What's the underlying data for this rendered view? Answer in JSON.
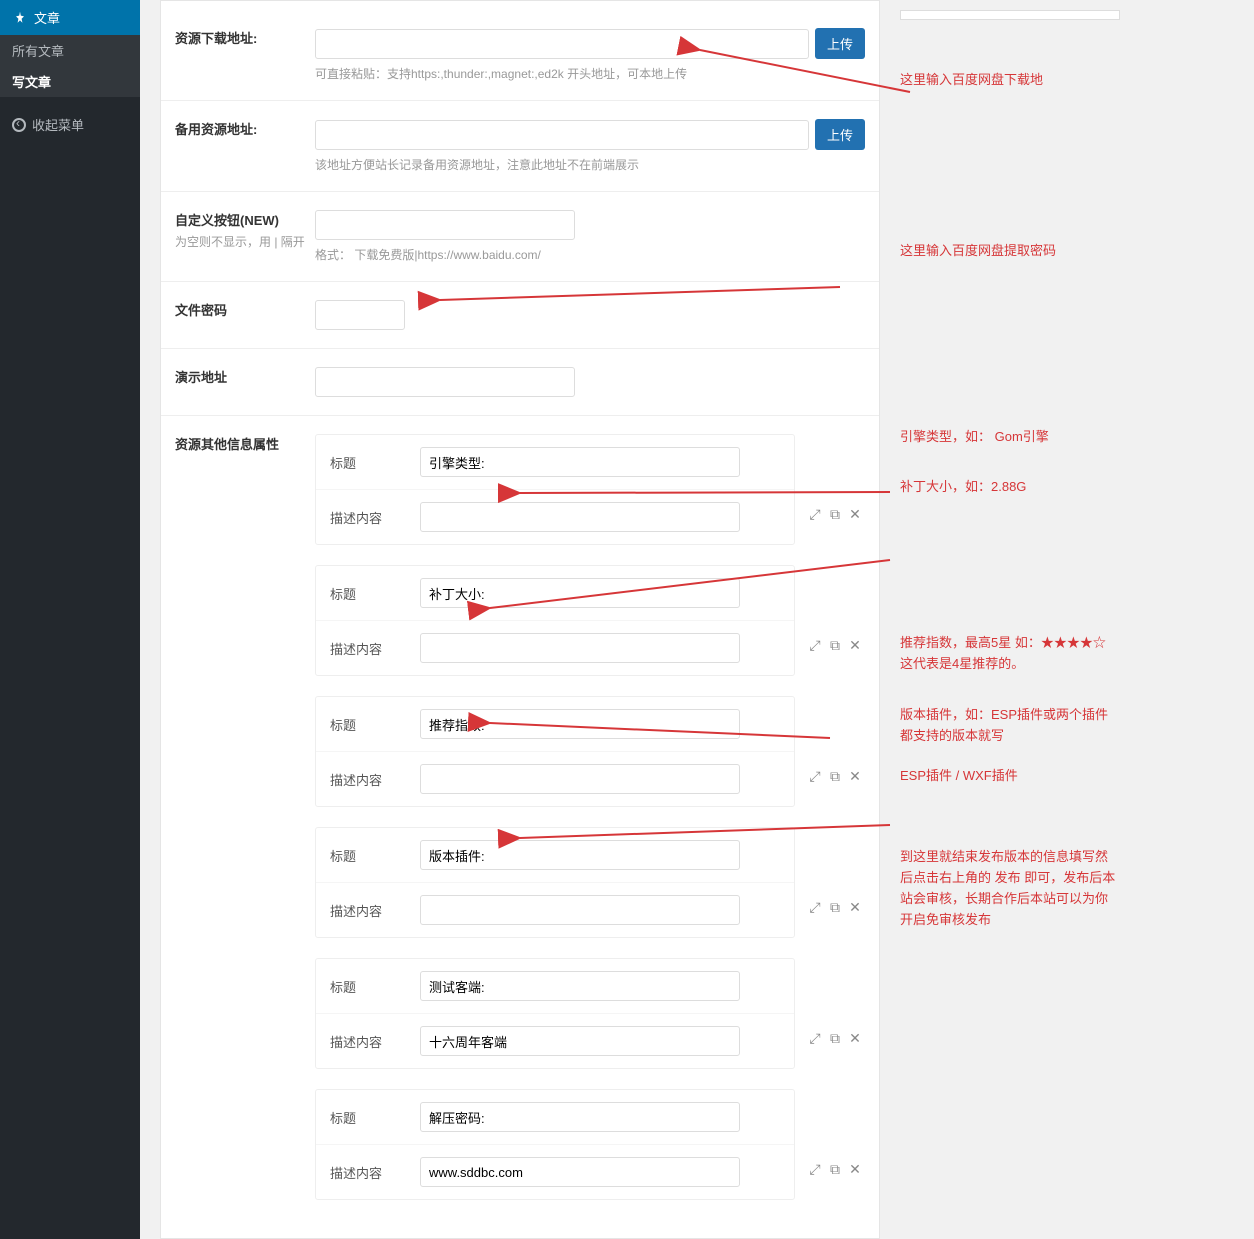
{
  "sidebar": {
    "articles_label": "文章",
    "all_articles": "所有文章",
    "write_article": "写文章",
    "collapse": "收起菜单"
  },
  "fields": {
    "download": {
      "label": "资源下载地址:",
      "upload": "上传",
      "help": "可直接粘贴：支持https:,thunder:,magnet:,ed2k 开头地址，可本地上传"
    },
    "backup": {
      "label": "备用资源地址:",
      "upload": "上传",
      "help": "该地址方便站长记录备用资源地址，注意此地址不在前端展示"
    },
    "custom_btn": {
      "label": "自定义按钮(NEW)",
      "sub": "为空则不显示，用 | 隔开",
      "help": "格式： 下载免费版|https://www.baidu.com/"
    },
    "password": {
      "label": "文件密码"
    },
    "demo": {
      "label": "演示地址"
    },
    "attrs": {
      "label": "资源其他信息属性"
    }
  },
  "attr_labels": {
    "title": "标题",
    "desc": "描述内容"
  },
  "attr_groups": [
    {
      "title": "引擎类型:",
      "desc": ""
    },
    {
      "title": "补丁大小:",
      "desc": ""
    },
    {
      "title": "推荐指数:",
      "desc": ""
    },
    {
      "title": "版本插件:",
      "desc": ""
    },
    {
      "title": "测试客端:",
      "desc": "十六周年客端"
    },
    {
      "title": "解压密码:",
      "desc": "www.sddbc.com"
    }
  ],
  "annotations": {
    "a1": "这里输入百度网盘下载地",
    "a2": "这里输入百度网盘提取密码",
    "a3": "引擎类型，如： Gom引擎",
    "a4": "补丁大小，如：2.88G",
    "a5": "推荐指数，最高5星 如：★★★★☆ 这代表是4星推荐的。",
    "a6": "版本插件，如：ESP插件或两个插件都支持的版本就写",
    "a7": "ESP插件 / WXF插件",
    "a8": "到这里就结束发布版本的信息填写然后点击右上角的 发布 即可，发布后本站会审核，长期合作后本站可以为你开启免审核发布"
  },
  "colors": {
    "accent": "#2271b1",
    "danger": "#d63638",
    "sidebar_bg": "#23282d"
  }
}
